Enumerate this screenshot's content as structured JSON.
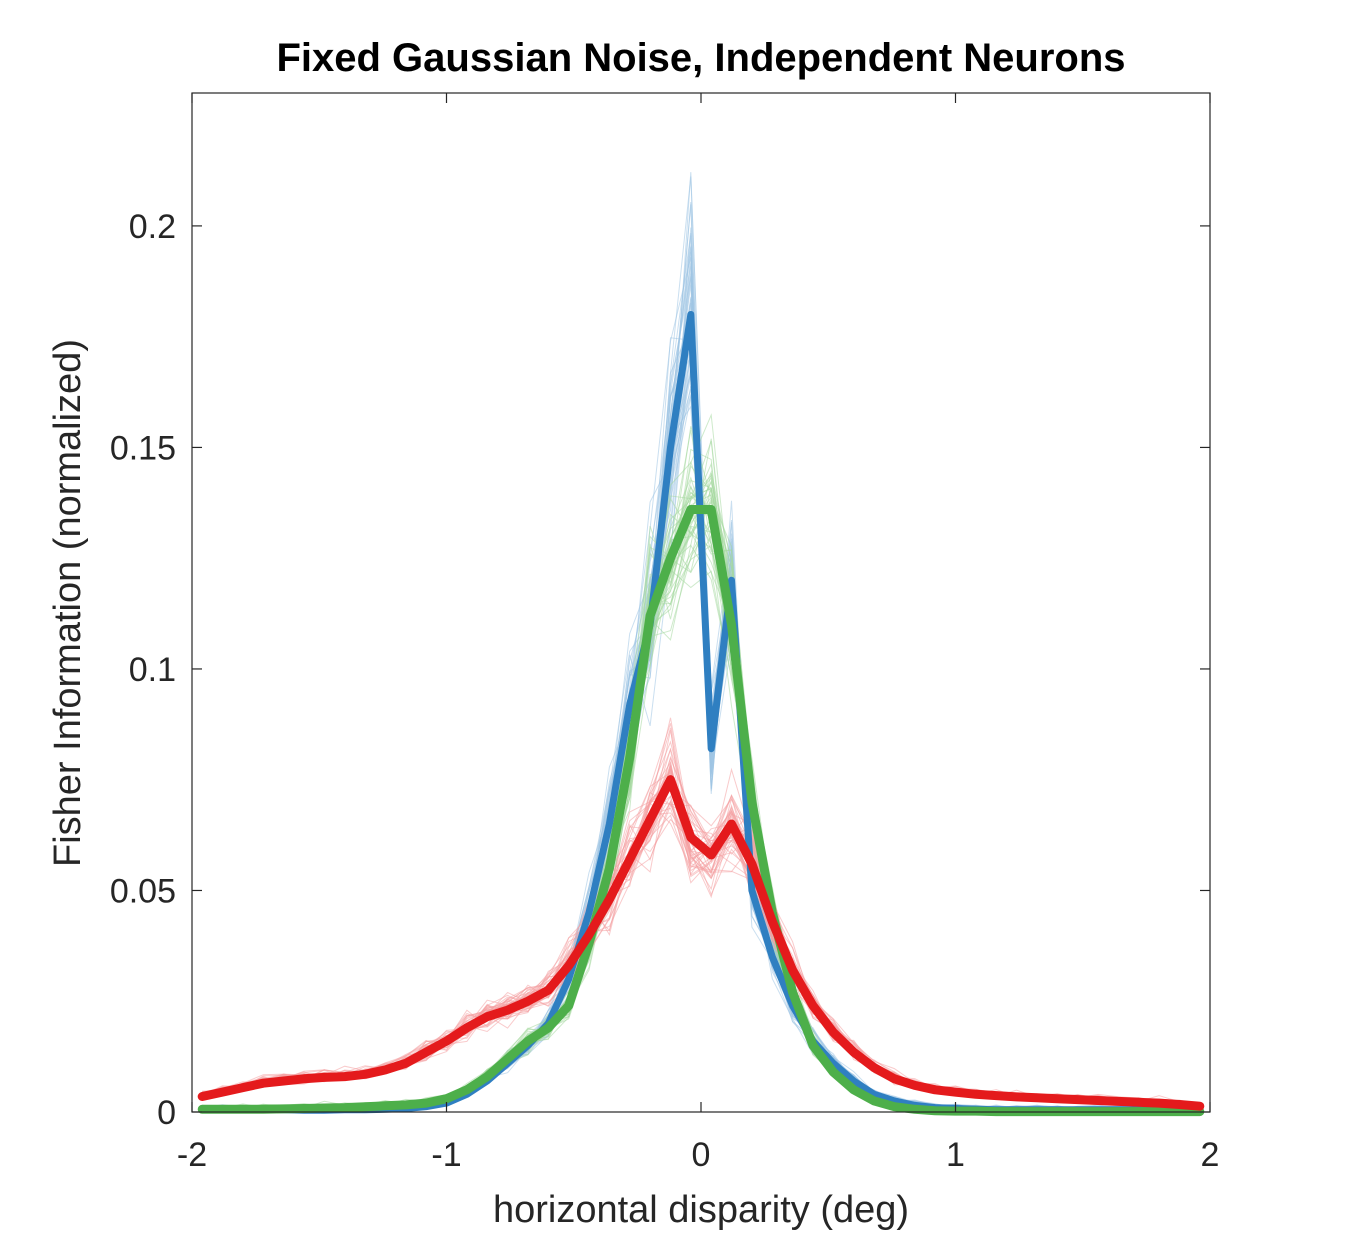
{
  "chart_data": {
    "type": "line",
    "title": "Fixed Gaussian Noise, Independent Neurons",
    "xlabel": "horizontal disparity (deg)",
    "ylabel": "Fisher Information (normalized)",
    "xlim": [
      -2,
      2
    ],
    "ylim": [
      0,
      0.23
    ],
    "xticks": [
      -2,
      -1,
      0,
      1,
      2
    ],
    "xtick_labels": [
      "-2",
      "-1",
      "0",
      "1",
      "2"
    ],
    "yticks": [
      0,
      0.05,
      0.1,
      0.15,
      0.2
    ],
    "ytick_labels": [
      "0",
      "0.05",
      "0.1",
      "0.15",
      "0.2"
    ],
    "grid": false,
    "box": true,
    "x": [
      -1.96,
      -1.88,
      -1.8,
      -1.72,
      -1.64,
      -1.56,
      -1.48,
      -1.4,
      -1.32,
      -1.24,
      -1.16,
      -1.08,
      -1.0,
      -0.92,
      -0.84,
      -0.76,
      -0.68,
      -0.6,
      -0.52,
      -0.44,
      -0.36,
      -0.28,
      -0.2,
      -0.12,
      -0.04,
      0.04,
      0.12,
      0.2,
      0.28,
      0.36,
      0.44,
      0.52,
      0.6,
      0.68,
      0.76,
      0.84,
      0.92,
      1.0,
      1.08,
      1.16,
      1.24,
      1.32,
      1.4,
      1.48,
      1.56,
      1.64,
      1.72,
      1.8,
      1.88,
      1.96
    ],
    "series": [
      {
        "color": "#2f7fc1",
        "values": [
          0.0005,
          0.0005,
          0.0005,
          0.0005,
          0.0005,
          0.0004,
          0.0004,
          0.0005,
          0.0005,
          0.0006,
          0.0008,
          0.0012,
          0.002,
          0.004,
          0.007,
          0.011,
          0.015,
          0.02,
          0.03,
          0.045,
          0.065,
          0.092,
          0.11,
          0.15,
          0.18,
          0.082,
          0.12,
          0.05,
          0.035,
          0.024,
          0.016,
          0.011,
          0.007,
          0.004,
          0.0025,
          0.0015,
          0.001,
          0.0008,
          0.0006,
          0.0005,
          0.0005,
          0.0005,
          0.0005,
          0.0005,
          0.0005,
          0.0005,
          0.0005,
          0.0005,
          0.0005,
          0.0005
        ]
      },
      {
        "color": "#4daf4a",
        "values": [
          0.0006,
          0.0006,
          0.0006,
          0.0006,
          0.0007,
          0.0008,
          0.0009,
          0.001,
          0.0012,
          0.0014,
          0.0016,
          0.002,
          0.003,
          0.005,
          0.008,
          0.012,
          0.016,
          0.019,
          0.024,
          0.038,
          0.055,
          0.08,
          0.112,
          0.125,
          0.136,
          0.136,
          0.11,
          0.07,
          0.045,
          0.027,
          0.015,
          0.009,
          0.005,
          0.0025,
          0.0012,
          0.0006,
          0.0003,
          0.0002,
          0.0002,
          0.0001,
          0.0001,
          0.0001,
          0.0001,
          0.0001,
          0.0001,
          0.0001,
          0.0001,
          0.0001,
          0.0001,
          0.0001
        ]
      },
      {
        "color": "#e41a1c",
        "values": [
          0.0035,
          0.0045,
          0.0055,
          0.0065,
          0.007,
          0.0075,
          0.0078,
          0.008,
          0.0085,
          0.0095,
          0.011,
          0.0135,
          0.016,
          0.019,
          0.0215,
          0.023,
          0.025,
          0.0275,
          0.033,
          0.04,
          0.048,
          0.057,
          0.066,
          0.075,
          0.062,
          0.058,
          0.065,
          0.056,
          0.043,
          0.032,
          0.024,
          0.018,
          0.0135,
          0.01,
          0.0075,
          0.006,
          0.005,
          0.0045,
          0.004,
          0.0037,
          0.0034,
          0.0032,
          0.003,
          0.0028,
          0.0026,
          0.0024,
          0.0022,
          0.002,
          0.0017,
          0.0013
        ]
      }
    ]
  }
}
